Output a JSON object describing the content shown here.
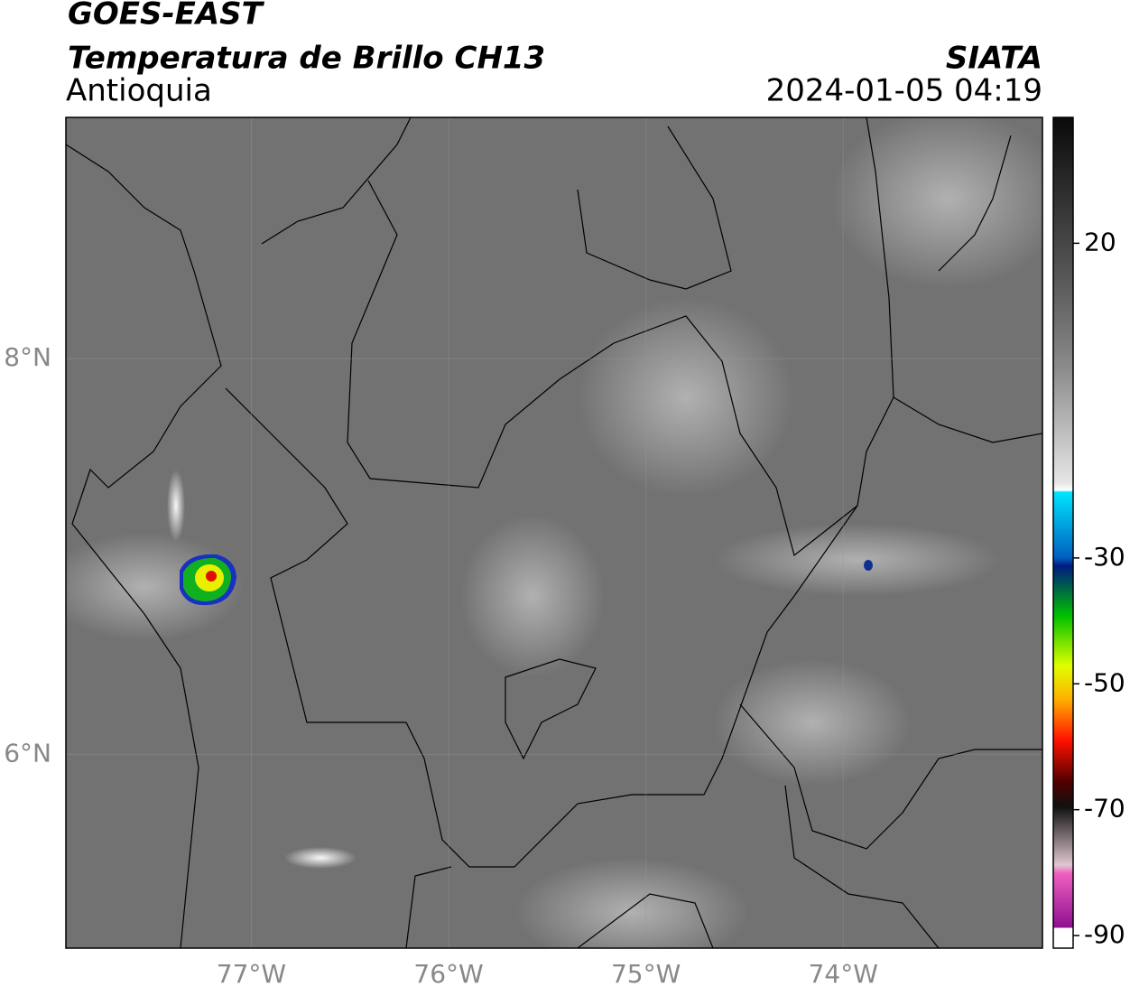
{
  "header": {
    "satellite": "GOES-EAST",
    "product": "Temperatura de Brillo CH13",
    "region": "Antioquia",
    "agency": "SIATA",
    "datetime": "2024-01-05 04:19"
  },
  "map": {
    "xlim": [
      -77.94,
      -72.99
    ],
    "ylim": [
      5.02,
      9.22
    ],
    "xticks": [
      {
        "value": -77,
        "label": "77°W"
      },
      {
        "value": -76,
        "label": "76°W"
      },
      {
        "value": -75,
        "label": "75°W"
      },
      {
        "value": -74,
        "label": "74°W"
      }
    ],
    "yticks": [
      {
        "value": 6,
        "label": "6°N"
      },
      {
        "value": 8,
        "label": "8°N"
      }
    ]
  },
  "colorbar": {
    "lim": [
      -92,
      40
    ],
    "ticks": [
      -90,
      -70,
      -50,
      -30,
      20
    ]
  }
}
